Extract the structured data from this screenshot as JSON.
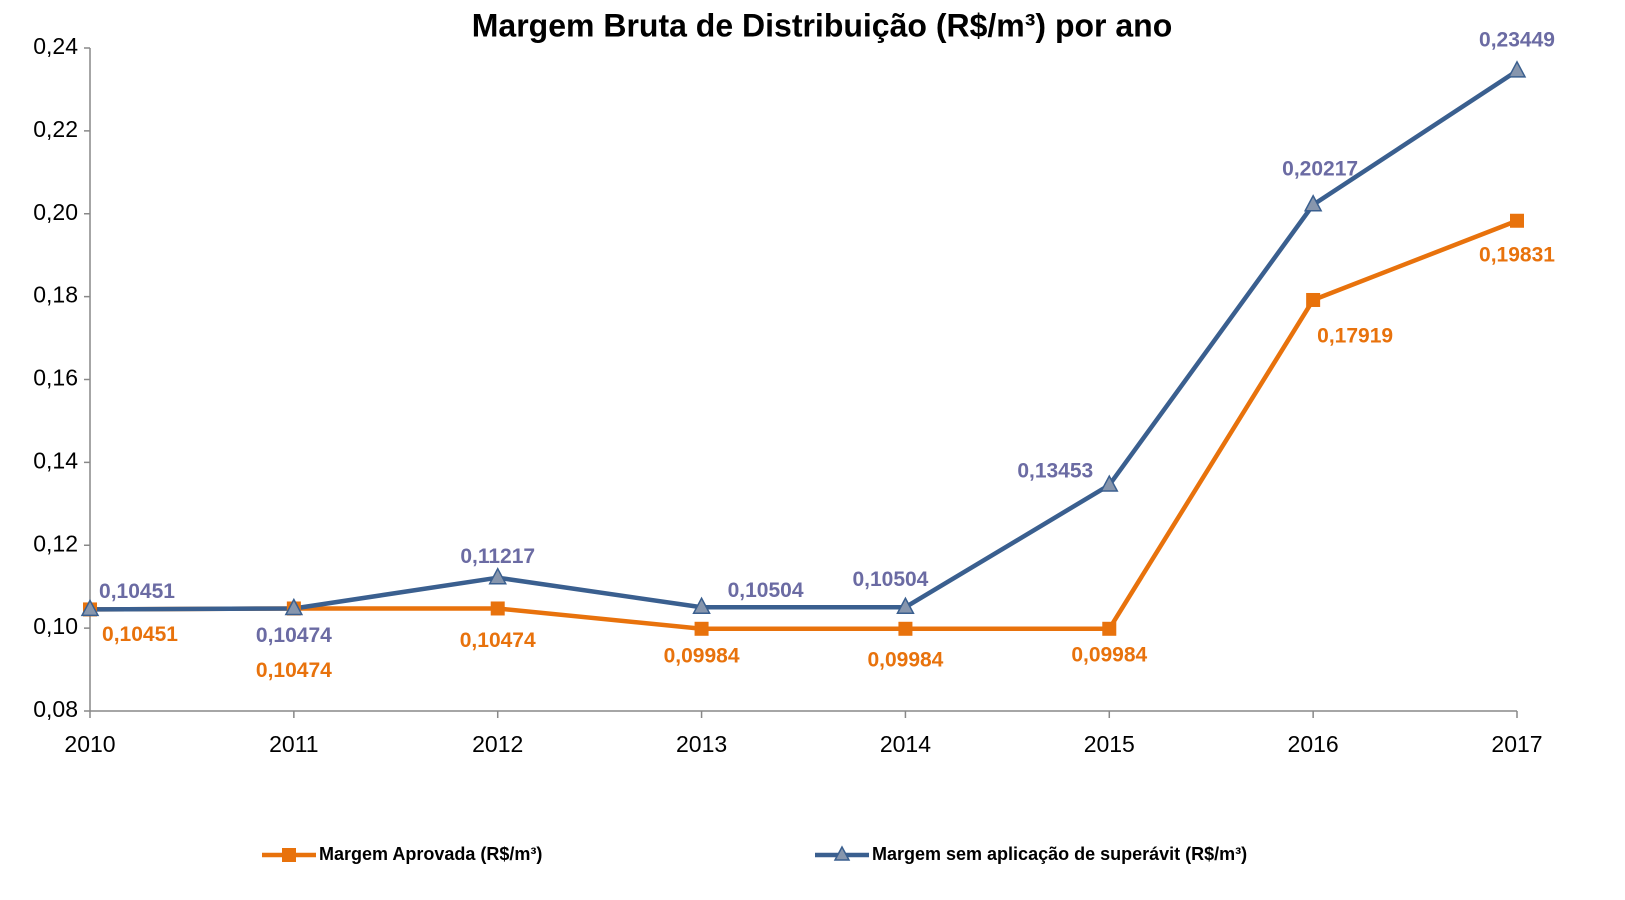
{
  "chart_data": {
    "type": "line",
    "title": "Margem Bruta de Distribuição (R$/m³) por ano",
    "categories": [
      "2010",
      "2011",
      "2012",
      "2013",
      "2014",
      "2015",
      "2016",
      "2017"
    ],
    "series": [
      {
        "name": "Margem Aprovada (R$/m³)",
        "color": "#e8720c",
        "label_color": "#e8720c",
        "marker": "square",
        "values": [
          0.10451,
          0.10474,
          0.10474,
          0.09984,
          0.09984,
          0.09984,
          0.17919,
          0.19831
        ],
        "value_labels": [
          "0,10451",
          "0,10474",
          "0,10474",
          "0,09984",
          "0,09984",
          "0,09984",
          "0,17919",
          "0,19831"
        ]
      },
      {
        "name": "Margem sem aplicação de superávit (R$/m³)",
        "color": "#3a5f8f",
        "label_color": "#6b6ba3",
        "marker": "triangle",
        "values": [
          0.10451,
          0.10474,
          0.11217,
          0.10504,
          0.10504,
          0.13453,
          0.20217,
          0.23449
        ],
        "value_labels": [
          "0,10451",
          "0,10474",
          "0,11217",
          "0,10504",
          "0,10504",
          "0,13453",
          "0,20217",
          "0,23449"
        ]
      }
    ],
    "ylim": [
      0.08,
      0.24
    ],
    "yticks": [
      {
        "value": 0.08,
        "label": "0,08"
      },
      {
        "value": 0.1,
        "label": "0,10"
      },
      {
        "value": 0.12,
        "label": "0,12"
      },
      {
        "value": 0.14,
        "label": "0,14"
      },
      {
        "value": 0.16,
        "label": "0,16"
      },
      {
        "value": 0.18,
        "label": "0,18"
      },
      {
        "value": 0.2,
        "label": "0,20"
      },
      {
        "value": 0.22,
        "label": "0,22"
      },
      {
        "value": 0.24,
        "label": "0,24"
      }
    ],
    "grid": false,
    "legend": "bottom"
  }
}
